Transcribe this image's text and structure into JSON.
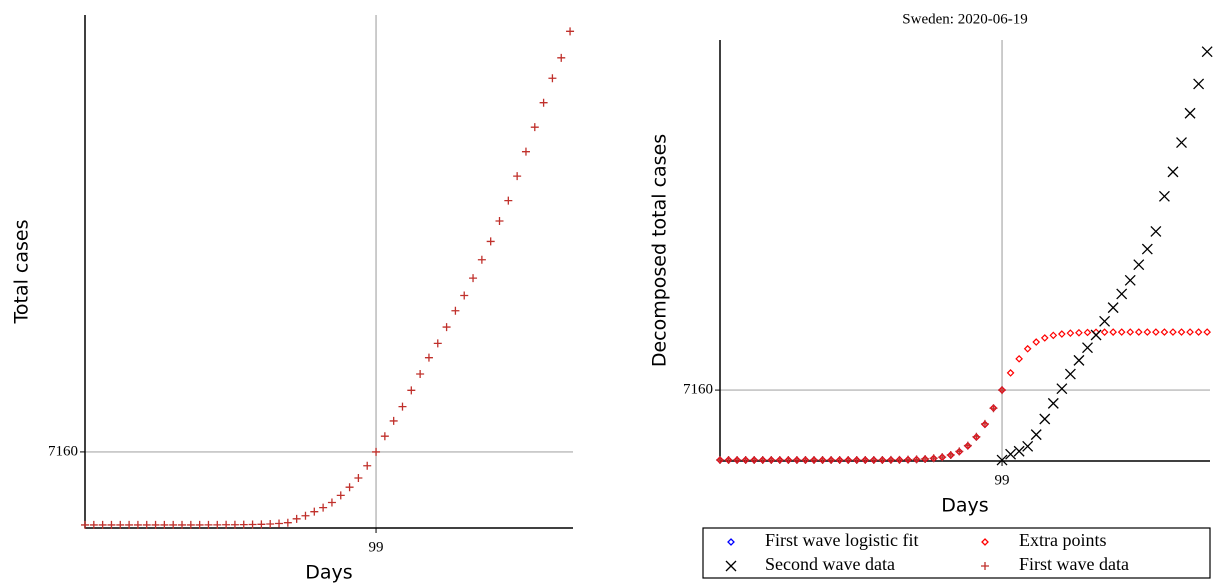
{
  "chart_data": [
    {
      "type": "scatter",
      "x_label": "Days",
      "y_label": "Total cases",
      "xlim": [
        0,
        166
      ],
      "ylim": [
        -300,
        50000
      ],
      "xticks": [
        99
      ],
      "yticks": [
        7160
      ],
      "grid": true,
      "series": [
        {
          "color": "#c0302b",
          "marker": "plus",
          "x": [
            0,
            3,
            6,
            9,
            12,
            15,
            18,
            21,
            24,
            27,
            30,
            33,
            36,
            39,
            42,
            45,
            48,
            51,
            54,
            57,
            60,
            63,
            66,
            69,
            72,
            75,
            78,
            81,
            84,
            87,
            90,
            93,
            96,
            99,
            102,
            105,
            108,
            111,
            114,
            117,
            120,
            123,
            126,
            129,
            132,
            135,
            138,
            141,
            144,
            147,
            150,
            153,
            156,
            159,
            162,
            165
          ],
          "values": [
            1,
            1,
            1,
            1,
            1,
            1,
            1,
            1,
            1,
            1,
            1,
            1,
            1,
            2,
            5,
            10,
            15,
            20,
            30,
            40,
            60,
            90,
            140,
            220,
            600,
            900,
            1300,
            1700,
            2200,
            2900,
            3700,
            4600,
            5800,
            7160,
            8700,
            10200,
            11600,
            13200,
            14800,
            16400,
            17800,
            19400,
            21000,
            22500,
            24200,
            26000,
            27800,
            29800,
            31800,
            34200,
            36600,
            39000,
            41400,
            43800,
            45800,
            48400
          ]
        }
      ]
    },
    {
      "type": "scatter",
      "title": "Sweden: 2020-06-19",
      "x_label": "Days",
      "y_label": "Decomposed total cases",
      "xlim": [
        0,
        172
      ],
      "ylim": [
        -100,
        43000
      ],
      "xticks": [
        99
      ],
      "yticks": [
        7160
      ],
      "grid": true,
      "legend": "below",
      "series": [
        {
          "name": "First wave logistic fit",
          "color": "#0000ff",
          "marker": "diamond",
          "x": [
            0,
            3,
            6,
            9,
            12,
            15,
            18,
            21,
            24,
            27,
            30,
            33,
            36,
            39,
            42,
            45,
            48,
            51,
            54,
            57,
            60,
            63,
            66,
            69,
            72,
            75,
            78,
            81,
            84,
            87,
            90,
            93,
            96,
            99
          ],
          "values": [
            0,
            0,
            0,
            0,
            0,
            0,
            0,
            0,
            0,
            0,
            0,
            0,
            0,
            0,
            0,
            0,
            0,
            1,
            2,
            5,
            10,
            17,
            30,
            53,
            93,
            164,
            287,
            498,
            856,
            1450,
            2350,
            3650,
            5320,
            7170
          ]
        },
        {
          "name": "Extra points",
          "color": "#ff0000",
          "marker": "diamond",
          "x": [
            0,
            3,
            6,
            9,
            12,
            15,
            18,
            21,
            24,
            27,
            30,
            33,
            36,
            39,
            42,
            45,
            48,
            51,
            54,
            57,
            60,
            63,
            66,
            69,
            72,
            75,
            78,
            81,
            84,
            87,
            90,
            93,
            96,
            99,
            102,
            105,
            108,
            111,
            114,
            117,
            120,
            123,
            126,
            129,
            132,
            135,
            138,
            141,
            144,
            147,
            150,
            153,
            156,
            159,
            162,
            165,
            168,
            171
          ],
          "values": [
            0,
            0,
            0,
            0,
            0,
            0,
            0,
            0,
            0,
            0,
            0,
            0,
            0,
            0,
            0,
            0,
            0,
            1,
            2,
            5,
            10,
            17,
            30,
            53,
            93,
            164,
            287,
            498,
            856,
            1450,
            2350,
            3650,
            5320,
            7170,
            8920,
            10360,
            11390,
            12080,
            12500,
            12760,
            12900,
            12990,
            13030,
            13060,
            13080,
            13090,
            13095,
            13100,
            13100,
            13100,
            13100,
            13100,
            13100,
            13100,
            13100,
            13100,
            13100,
            13100
          ]
        },
        {
          "name": "Second wave data",
          "color": "#000000",
          "marker": "cross",
          "x": [
            99,
            102,
            105,
            108,
            111,
            114,
            117,
            120,
            123,
            126,
            129,
            132,
            135,
            138,
            141,
            144,
            147,
            150,
            153,
            156,
            159,
            162,
            165,
            168,
            171
          ],
          "values": [
            0,
            600,
            900,
            1400,
            2600,
            4200,
            5800,
            7300,
            8800,
            10200,
            11500,
            12800,
            14200,
            15600,
            17000,
            18400,
            20000,
            21600,
            23400,
            27000,
            29500,
            32500,
            35500,
            38500,
            41800
          ]
        },
        {
          "name": "First wave data",
          "color": "#c0302b",
          "marker": "plus",
          "x": [
            0,
            3,
            6,
            9,
            12,
            15,
            18,
            21,
            24,
            27,
            30,
            33,
            36,
            39,
            42,
            45,
            48,
            51,
            54,
            57,
            60,
            63,
            66,
            69,
            72,
            75,
            78,
            81,
            84,
            87,
            90,
            93,
            96,
            99
          ],
          "values": [
            1,
            1,
            1,
            1,
            1,
            1,
            1,
            1,
            1,
            1,
            1,
            1,
            1,
            1,
            1,
            1,
            1,
            2,
            4,
            7,
            12,
            20,
            35,
            60,
            110,
            180,
            300,
            520,
            880,
            1480,
            2380,
            3700,
            5300,
            7160
          ]
        }
      ]
    }
  ]
}
